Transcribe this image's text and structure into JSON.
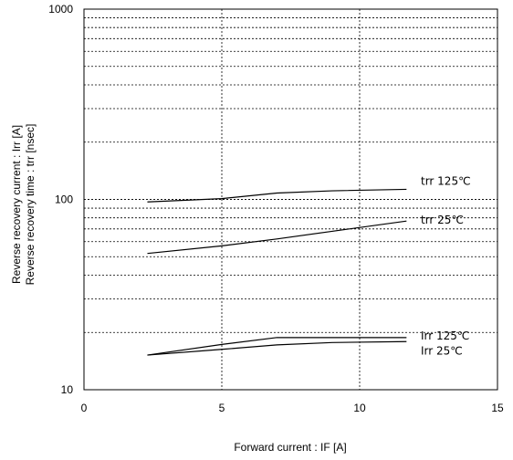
{
  "chart_data": {
    "type": "line",
    "title": "",
    "xlabel": "Forward current : IF [A]",
    "ylabel_lines": [
      "Reverse recovery current : Irr [A]",
      "Reverse recovery time : trr [nsec]"
    ],
    "xlim": [
      0,
      15
    ],
    "ylim": [
      10,
      1000
    ],
    "y_scale": "log",
    "x_ticks": [
      0,
      5,
      10,
      15
    ],
    "x_tick_labels": [
      "0",
      "5",
      "10",
      "15"
    ],
    "y_ticks": [
      10,
      100,
      1000
    ],
    "y_tick_labels": [
      "10",
      "100",
      "1000"
    ],
    "grid": true,
    "series": [
      {
        "name": "trr 125℃",
        "x": [
          2.3,
          5,
          7,
          9,
          11.7
        ],
        "y": [
          97,
          101,
          108,
          111,
          113
        ]
      },
      {
        "name": "trr 25℃",
        "x": [
          2.3,
          5,
          7,
          9,
          11.7
        ],
        "y": [
          52,
          57,
          62,
          68,
          77
        ]
      },
      {
        "name": "Irr 125℃",
        "x": [
          2.3,
          5,
          7,
          9,
          11.7
        ],
        "y": [
          15.2,
          17.3,
          18.8,
          18.8,
          18.8
        ]
      },
      {
        "name": "Irr 25℃",
        "x": [
          2.3,
          5,
          7,
          9,
          11.7
        ],
        "y": [
          15.2,
          16.3,
          17.2,
          17.7,
          17.9
        ]
      }
    ]
  }
}
